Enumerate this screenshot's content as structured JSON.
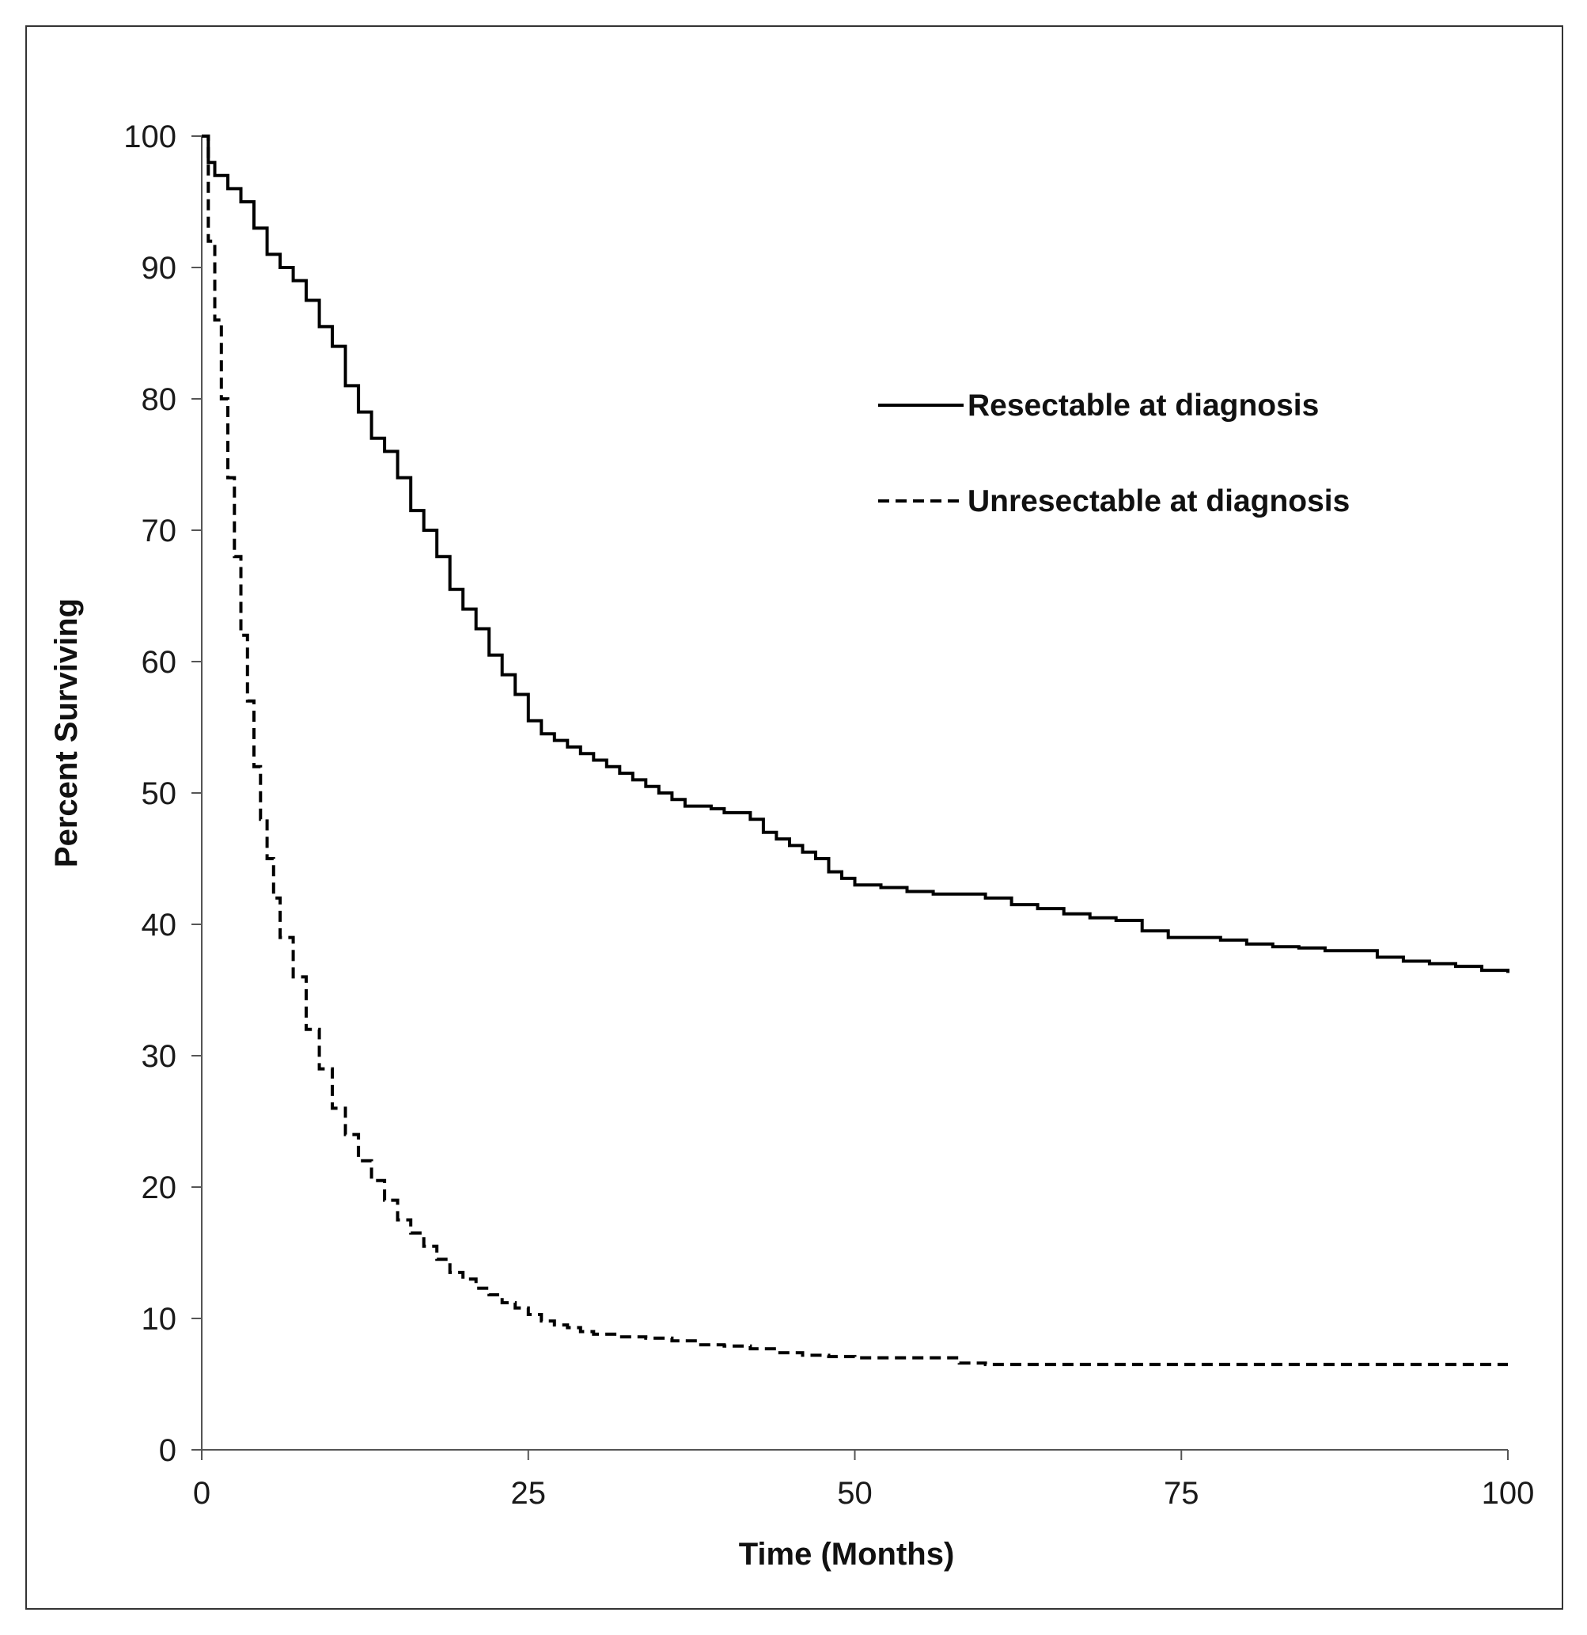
{
  "chart_data": {
    "type": "line",
    "title": "",
    "xlabel": "Time (Months)",
    "ylabel": "Percent Surviving",
    "xlim": [
      0,
      100
    ],
    "ylim": [
      0,
      100
    ],
    "xticks": [
      0,
      25,
      50,
      75,
      100
    ],
    "yticks": [
      0,
      10,
      20,
      30,
      40,
      50,
      60,
      70,
      80,
      90,
      100
    ],
    "grid": false,
    "legend_position": "top-right",
    "colors": {
      "line": "#000000",
      "axis": "#555555",
      "frame": "#333333"
    },
    "series": [
      {
        "name": "Resectable at diagnosis",
        "style": "solid",
        "x": [
          0,
          0.5,
          1,
          2,
          3,
          4,
          5,
          6,
          7,
          8,
          9,
          10,
          11,
          12,
          13,
          14,
          15,
          16,
          17,
          18,
          19,
          20,
          21,
          22,
          23,
          24,
          25,
          26,
          27,
          28,
          29,
          30,
          31,
          32,
          33,
          34,
          35,
          36,
          37,
          38,
          39,
          40,
          41,
          42,
          43,
          44,
          45,
          46,
          47,
          48,
          49,
          50,
          52,
          54,
          56,
          58,
          60,
          62,
          64,
          66,
          68,
          70,
          72,
          74,
          76,
          78,
          80,
          82,
          84,
          86,
          88,
          90,
          92,
          94,
          96,
          98,
          100
        ],
        "values": [
          100,
          98,
          97,
          96,
          95,
          93,
          91,
          90,
          89,
          87.5,
          85.5,
          84,
          81,
          79,
          77,
          76,
          74,
          71.5,
          70,
          68,
          65.5,
          64,
          62.5,
          60.5,
          59,
          57.5,
          55.5,
          54.5,
          54,
          53.5,
          53,
          52.5,
          52,
          51.5,
          51,
          50.5,
          50,
          49.5,
          49,
          49,
          48.8,
          48.5,
          48.5,
          48,
          47,
          46.5,
          46,
          45.5,
          45,
          44,
          43.5,
          43,
          42.8,
          42.5,
          42.3,
          42.3,
          42,
          41.5,
          41.2,
          40.8,
          40.5,
          40.3,
          39.5,
          39,
          39,
          38.8,
          38.5,
          38.3,
          38.2,
          38,
          38,
          37.5,
          37.2,
          37,
          36.8,
          36.5,
          36.3
        ]
      },
      {
        "name": "Unresectable at diagnosis",
        "style": "dashed",
        "x": [
          0,
          0.5,
          1,
          1.5,
          2,
          2.5,
          3,
          3.5,
          4,
          4.5,
          5,
          5.5,
          6,
          7,
          8,
          9,
          10,
          11,
          12,
          13,
          14,
          15,
          16,
          17,
          18,
          19,
          20,
          21,
          22,
          23,
          24,
          25,
          26,
          27,
          28,
          29,
          30,
          32,
          34,
          36,
          38,
          40,
          42,
          44,
          46,
          48,
          50,
          55,
          58,
          60,
          70,
          80,
          90,
          100
        ],
        "values": [
          100,
          92,
          86,
          80,
          74,
          68,
          62,
          57,
          52,
          48,
          45,
          42,
          39,
          36,
          32,
          29,
          26,
          24,
          22,
          20.5,
          19,
          17.5,
          16.5,
          15.5,
          14.5,
          13.5,
          13,
          12.3,
          11.8,
          11.2,
          10.8,
          10.3,
          9.8,
          9.5,
          9.3,
          9,
          8.8,
          8.6,
          8.5,
          8.3,
          8,
          7.9,
          7.7,
          7.4,
          7.2,
          7.1,
          7,
          7,
          6.6,
          6.5,
          6.5,
          6.5,
          6.5,
          6.5
        ]
      }
    ]
  }
}
